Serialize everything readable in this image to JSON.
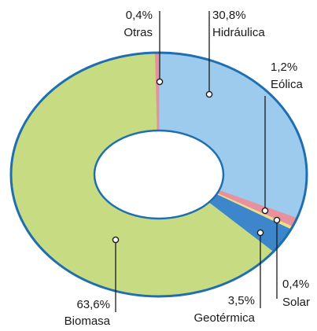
{
  "chart_data": {
    "type": "pie",
    "title": "",
    "slices": [
      {
        "name": "Hidráulica",
        "value": 30.8,
        "label": "30,8%",
        "color": "#9ccbed"
      },
      {
        "name": "Eólica",
        "value": 1.2,
        "label": "1,2%",
        "color": "#e8919c"
      },
      {
        "name": "Solar",
        "value": 0.4,
        "label": "0,4%",
        "color": "#e9e08e"
      },
      {
        "name": "Geotérmica",
        "value": 3.5,
        "label": "3,5%",
        "color": "#3d86cc"
      },
      {
        "name": "Biomasa",
        "value": 63.6,
        "label": "63,6%",
        "color": "#c7dc82"
      },
      {
        "name": "Otras",
        "value": 0.4,
        "label": "0,4%",
        "color": "#e8919c"
      }
    ],
    "outline_color": "#1f6fb0",
    "legend": "none"
  }
}
